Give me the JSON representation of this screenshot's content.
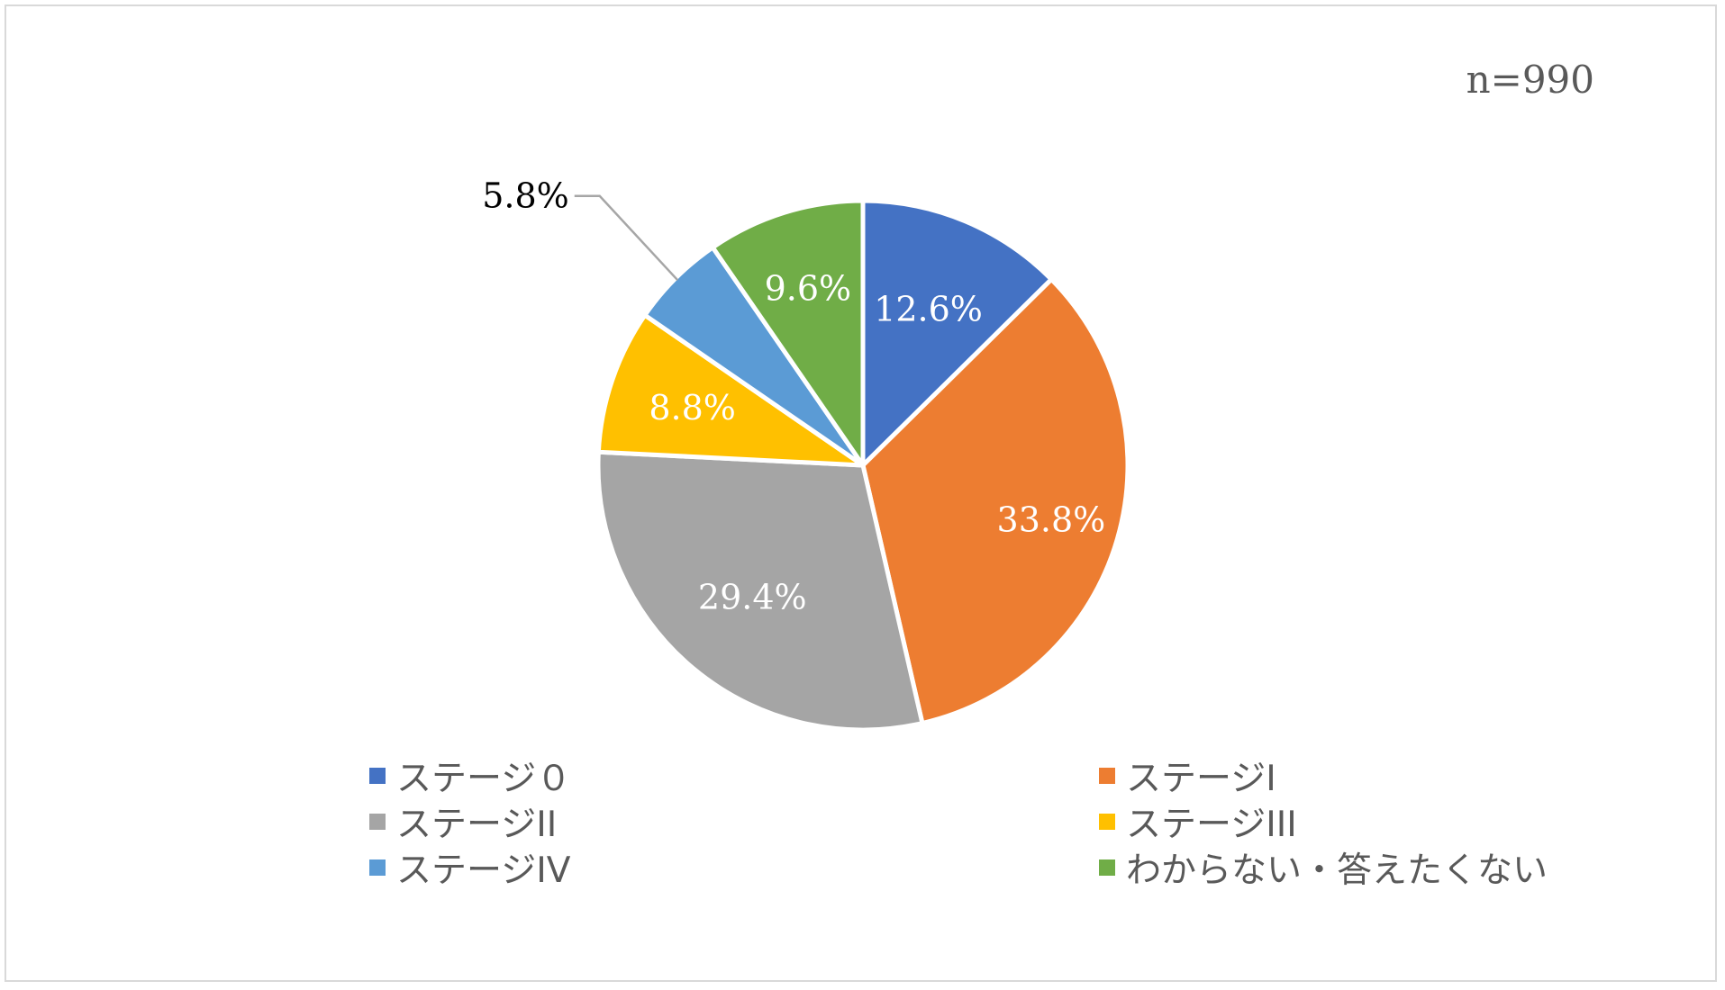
{
  "note": "n=990",
  "chart_data": {
    "type": "pie",
    "title": "",
    "categories": [
      "ステージ０",
      "ステージⅠ",
      "ステージⅠⅠ",
      "ステージⅠⅠⅠ",
      "ステージⅠⅤ",
      "わからない・答えたくない"
    ],
    "values": [
      12.6,
      33.8,
      29.4,
      8.8,
      5.8,
      9.6
    ],
    "labels": [
      "12.6%",
      "33.8%",
      "29.4%",
      "8.8%",
      "5.8%",
      "9.6%"
    ],
    "unit": "%",
    "legend": "bottom",
    "colors": [
      "#4472C4",
      "#ED7D31",
      "#A5A5A5",
      "#FFC000",
      "#5B9BD5",
      "#70AD47"
    ],
    "start": "12 o'clock, clockwise"
  },
  "legend": {
    "items": [
      {
        "label": "ステージ０",
        "color": "#4472C4"
      },
      {
        "label": "ステージⅠ",
        "color": "#ED7D31"
      },
      {
        "label": "ステージⅠⅠ",
        "color": "#A5A5A5"
      },
      {
        "label": "ステージⅠⅠⅠ",
        "color": "#FFC000"
      },
      {
        "label": "ステージⅠⅤ",
        "color": "#5B9BD5"
      },
      {
        "label": "わからない・答えたくない",
        "color": "#70AD47"
      }
    ]
  }
}
